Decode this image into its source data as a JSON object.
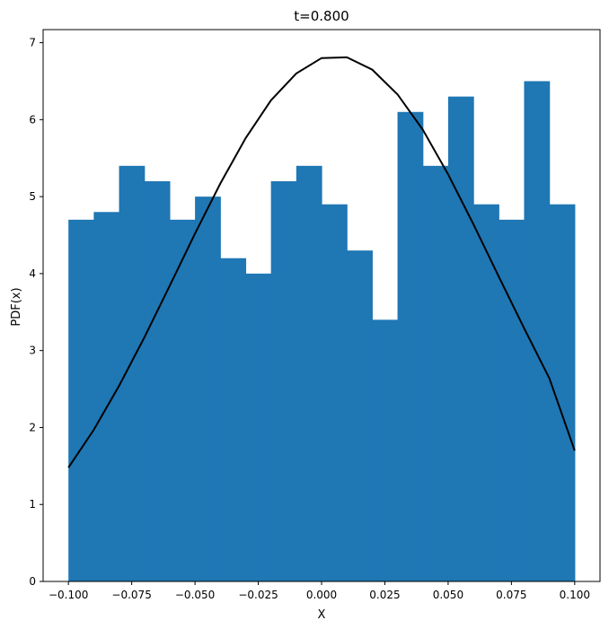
{
  "chart_data": {
    "type": "bar",
    "title": "t=0.800",
    "xlabel": "X",
    "ylabel": "PDF(x)",
    "xlim": [
      -0.11,
      0.11
    ],
    "ylim": [
      0,
      7.17
    ],
    "x_ticks": [
      -0.1,
      -0.075,
      -0.05,
      -0.025,
      0.0,
      0.025,
      0.05,
      0.075,
      0.1
    ],
    "x_tick_labels": [
      "−0.100",
      "−0.075",
      "−0.050",
      "−0.025",
      "0.000",
      "0.025",
      "0.050",
      "0.075",
      "0.100"
    ],
    "y_ticks": [
      0,
      1,
      2,
      3,
      4,
      5,
      6,
      7
    ],
    "y_tick_labels": [
      "0",
      "1",
      "2",
      "3",
      "4",
      "5",
      "6",
      "7"
    ],
    "grid": false,
    "histogram": {
      "color": "#1f77b4",
      "bin_edges": [
        -0.1,
        -0.09,
        -0.08,
        -0.07,
        -0.06,
        -0.05,
        -0.04,
        -0.03,
        -0.02,
        -0.01,
        0.0,
        0.01,
        0.02,
        0.03,
        0.04,
        0.05,
        0.06,
        0.07,
        0.08,
        0.09,
        0.1
      ],
      "values": [
        4.7,
        4.8,
        5.4,
        5.2,
        4.7,
        5.0,
        4.2,
        4.0,
        5.2,
        5.4,
        4.9,
        4.3,
        3.4,
        6.1,
        5.4,
        6.3,
        4.9,
        4.7,
        6.5,
        4.9
      ]
    },
    "curve": {
      "type": "line",
      "color": "#000000",
      "x": [
        -0.1,
        -0.09,
        -0.08,
        -0.07,
        -0.06,
        -0.05,
        -0.04,
        -0.03,
        -0.02,
        -0.01,
        0.0,
        0.01,
        0.02,
        0.03,
        0.04,
        0.05,
        0.06,
        0.07,
        0.08,
        0.09,
        0.1
      ],
      "y": [
        1.48,
        1.97,
        2.54,
        3.17,
        3.84,
        4.52,
        5.17,
        5.76,
        6.25,
        6.6,
        6.8,
        6.81,
        6.65,
        6.33,
        5.87,
        5.29,
        4.64,
        3.96,
        3.29,
        2.64,
        1.7
      ]
    }
  }
}
